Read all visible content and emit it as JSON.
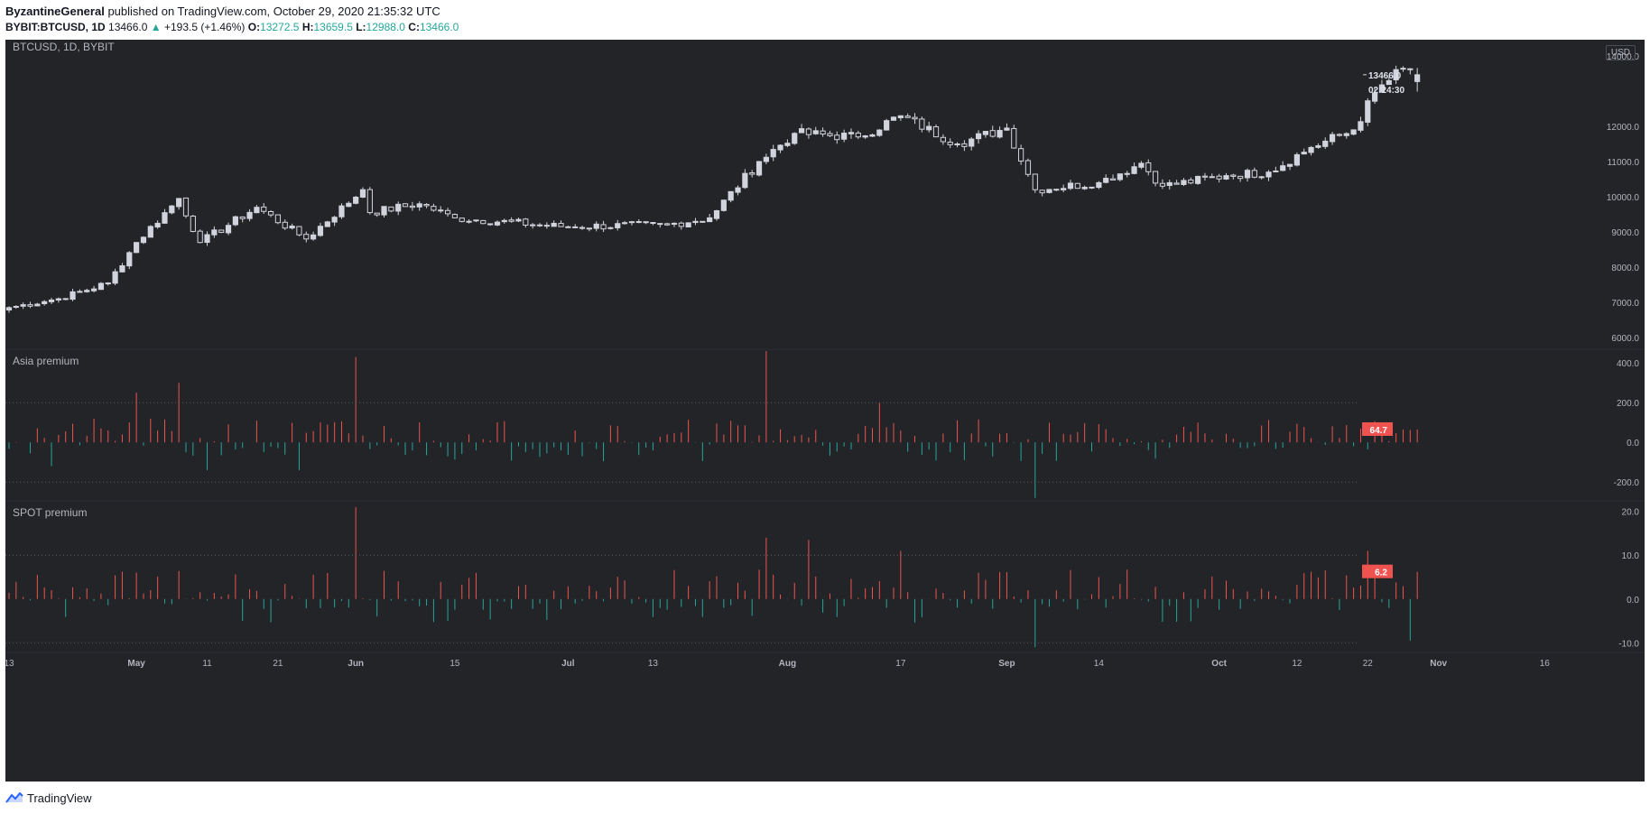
{
  "header": {
    "author": "ByzantineGeneral",
    "published_text": "published on TradingView.com, October 29, 2020 21:35:32 UTC",
    "symbol": "BYBIT:BTCUSD, 1D",
    "last": "13466.0",
    "change_arrow": "▲",
    "change": "+193.5 (+1.46%)",
    "o_label": "O:",
    "o": "13272.5",
    "h_label": "H:",
    "h": "13659.5",
    "l_label": "L:",
    "l": "12988.0",
    "c_label": "C:",
    "c": "13466.0"
  },
  "chart_title": "BTCUSD, 1D, BYBIT",
  "currency_button": "USD",
  "brand": "TradingView",
  "colors": {
    "background": "#232427",
    "up": "#26a69a",
    "down": "#ef5350",
    "candle": "#d1d4dc",
    "bar_pos": "#ef5350",
    "bar_neg": "#26a69a",
    "text": "#b2b5be"
  },
  "chart_data": [
    {
      "type": "candlestick",
      "title": "BTCUSD, 1D, BYBIT",
      "y_ticks": [
        "14000.0",
        "12000.0",
        "11000.0",
        "10000.0",
        "9000.0",
        "8000.0",
        "7000.0",
        "6000.0"
      ],
      "ylim": [
        6000,
        14000
      ],
      "last_price_label": "13466.0",
      "countdown": "02:24:30",
      "x_ticks": [
        "13",
        "May",
        "11",
        "21",
        "Jun",
        "15",
        "Jul",
        "13",
        "Aug",
        "17",
        "Sep",
        "14",
        "Oct",
        "12",
        "22",
        "Nov",
        "16"
      ],
      "close_anchors": [
        {
          "date": "2020-04-13",
          "close": 6850
        },
        {
          "date": "2020-04-20",
          "close": 7100
        },
        {
          "date": "2020-04-27",
          "close": 7550
        },
        {
          "date": "2020-05-01",
          "close": 8700
        },
        {
          "date": "2020-05-07",
          "close": 9950
        },
        {
          "date": "2020-05-10",
          "close": 8700
        },
        {
          "date": "2020-05-18",
          "close": 9700
        },
        {
          "date": "2020-05-25",
          "close": 8800
        },
        {
          "date": "2020-06-02",
          "close": 10200
        },
        {
          "date": "2020-06-03",
          "close": 9550
        },
        {
          "date": "2020-06-10",
          "close": 9800
        },
        {
          "date": "2020-06-15",
          "close": 9400
        },
        {
          "date": "2020-06-30",
          "close": 9150
        },
        {
          "date": "2020-07-15",
          "close": 9200
        },
        {
          "date": "2020-07-21",
          "close": 9400
        },
        {
          "date": "2020-07-28",
          "close": 11000
        },
        {
          "date": "2020-08-02",
          "close": 11800
        },
        {
          "date": "2020-08-11",
          "close": 11700
        },
        {
          "date": "2020-08-17",
          "close": 12300
        },
        {
          "date": "2020-08-25",
          "close": 11500
        },
        {
          "date": "2020-09-01",
          "close": 11950
        },
        {
          "date": "2020-09-05",
          "close": 10200
        },
        {
          "date": "2020-09-14",
          "close": 10400
        },
        {
          "date": "2020-09-20",
          "close": 10950
        },
        {
          "date": "2020-09-23",
          "close": 10300
        },
        {
          "date": "2020-10-02",
          "close": 10600
        },
        {
          "date": "2020-10-08",
          "close": 10700
        },
        {
          "date": "2020-10-14",
          "close": 11400
        },
        {
          "date": "2020-10-20",
          "close": 11900
        },
        {
          "date": "2020-10-23",
          "close": 12950
        },
        {
          "date": "2020-10-27",
          "close": 13650
        },
        {
          "date": "2020-10-29",
          "close": 13466
        }
      ]
    },
    {
      "type": "bar",
      "title": "Asia premium",
      "y_ticks": [
        "400.0",
        "200.0",
        "0.0",
        "-200.0"
      ],
      "ylim": [
        -290,
        460
      ],
      "dotted_levels": [
        200,
        -200
      ],
      "last_value_label": "64.7",
      "notable_values": [
        {
          "date": "2020-05-01",
          "value": 250
        },
        {
          "date": "2020-05-07",
          "value": 300
        },
        {
          "date": "2020-06-01",
          "value": 430
        },
        {
          "date": "2020-07-29",
          "value": 460
        },
        {
          "date": "2020-08-14",
          "value": 200
        },
        {
          "date": "2020-09-05",
          "value": -280
        },
        {
          "date": "2020-04-19",
          "value": -120
        },
        {
          "date": "2020-05-11",
          "value": -140
        },
        {
          "date": "2020-05-24",
          "value": -140
        }
      ]
    },
    {
      "type": "bar",
      "title": "SPOT premium",
      "y_ticks": [
        "20.0",
        "10.0",
        "0.0",
        "-10.0"
      ],
      "ylim": [
        -12,
        22
      ],
      "dotted_levels": [
        10,
        -10
      ],
      "last_value_label": "6.2",
      "notable_values": [
        {
          "date": "2020-06-01",
          "value": 21
        },
        {
          "date": "2020-07-29",
          "value": 14
        },
        {
          "date": "2020-08-04",
          "value": 13.5
        },
        {
          "date": "2020-08-17",
          "value": 11
        },
        {
          "date": "2020-09-05",
          "value": -11
        },
        {
          "date": "2020-10-22",
          "value": 11
        },
        {
          "date": "2020-10-28",
          "value": -9.5
        },
        {
          "date": "2020-10-29",
          "value": 6.2
        }
      ]
    }
  ]
}
